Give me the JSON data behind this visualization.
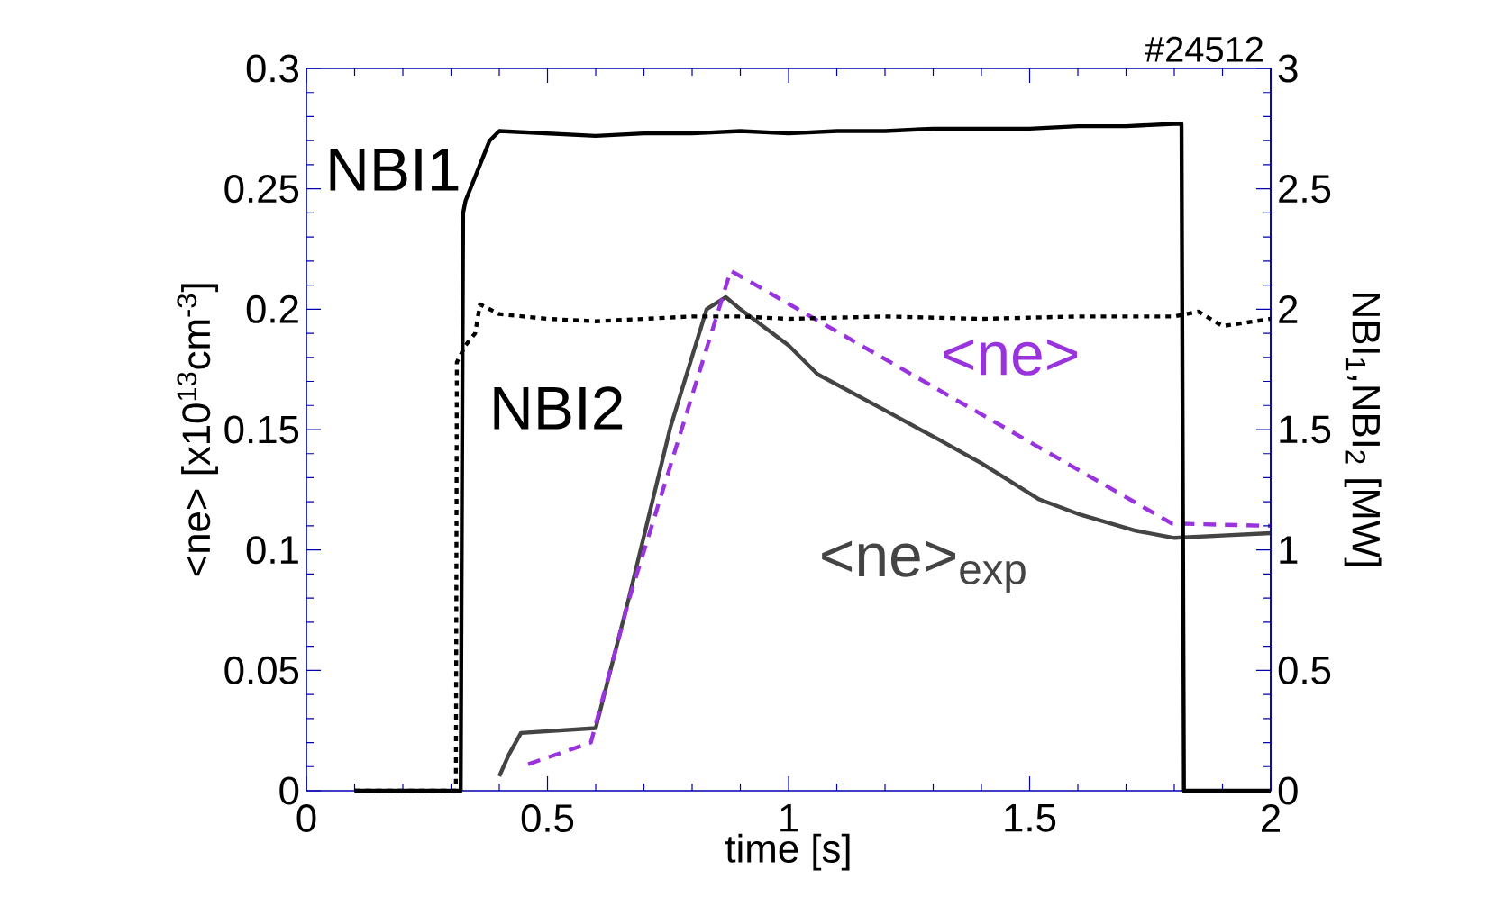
{
  "chart_data": {
    "type": "line",
    "xlabel": "time [s]",
    "ylabel": "<ne> [x10$^{13}$cm$^{-3}$]",
    "y2label": "NBI$_{1}$,NBI$_{2}$ [MW]",
    "annotations": [
      "#24512"
    ],
    "xlim": [
      0,
      2
    ],
    "xticks": [
      0,
      0.5,
      1,
      1.5,
      2
    ],
    "ylim": [
      0,
      0.3
    ],
    "yticks": [
      0,
      0.05,
      0.1,
      0.15,
      0.2,
      0.25,
      0.3
    ],
    "y2lim": [
      0,
      3
    ],
    "y2ticks": [
      0,
      0.5,
      1,
      1.5,
      2,
      2.5,
      3
    ],
    "series": [
      {
        "name": "NBI1",
        "color": "#000000",
        "line_style": "solid",
        "axis": "y2",
        "x": [
          0.1,
          0.32,
          0.325,
          0.33,
          0.36,
          0.38,
          0.4,
          0.5,
          0.6,
          0.7,
          0.8,
          0.9,
          1.0,
          1.1,
          1.2,
          1.3,
          1.4,
          1.5,
          1.6,
          1.7,
          1.8,
          1.815,
          1.82,
          2.0
        ],
        "values": [
          0,
          0,
          2.4,
          2.45,
          2.6,
          2.7,
          2.74,
          2.73,
          2.72,
          2.73,
          2.73,
          2.74,
          2.73,
          2.74,
          2.74,
          2.75,
          2.75,
          2.75,
          2.76,
          2.76,
          2.77,
          2.77,
          0,
          0
        ]
      },
      {
        "name": "NBI2",
        "color": "#000000",
        "line_style": "dotted",
        "axis": "y2",
        "x": [
          0.1,
          0.31,
          0.312,
          0.33,
          0.35,
          0.36,
          0.4,
          0.45,
          0.5,
          0.6,
          0.7,
          0.8,
          0.9,
          1.0,
          1.2,
          1.4,
          1.6,
          1.8,
          1.85,
          1.9,
          2.0
        ],
        "values": [
          0,
          0,
          1.78,
          1.85,
          1.9,
          2.02,
          1.98,
          1.97,
          1.96,
          1.95,
          1.96,
          1.97,
          1.97,
          1.96,
          1.97,
          1.96,
          1.97,
          1.97,
          1.99,
          1.93,
          1.96
        ]
      },
      {
        "name": "<ne>$_{exp}$",
        "color": "#444444",
        "line_style": "solid",
        "axis": "y",
        "x": [
          0.4,
          0.42,
          0.445,
          0.6,
          0.67,
          0.755,
          0.83,
          0.87,
          0.9,
          1.0,
          1.06,
          1.2,
          1.31,
          1.4,
          1.52,
          1.6,
          1.72,
          1.8,
          1.9,
          2.0
        ],
        "values": [
          0.006,
          0.015,
          0.024,
          0.026,
          0.081,
          0.151,
          0.2,
          0.205,
          0.2,
          0.185,
          0.173,
          0.158,
          0.146,
          0.136,
          0.121,
          0.115,
          0.108,
          0.105,
          0.106,
          0.107
        ]
      },
      {
        "name": "<ne>",
        "color": "#9933dd",
        "line_style": "dashed",
        "axis": "y",
        "x": [
          0.46,
          0.59,
          0.67,
          0.88,
          1.795,
          2.0
        ],
        "values": [
          0.011,
          0.02,
          0.08,
          0.216,
          0.111,
          0.11
        ]
      }
    ]
  }
}
